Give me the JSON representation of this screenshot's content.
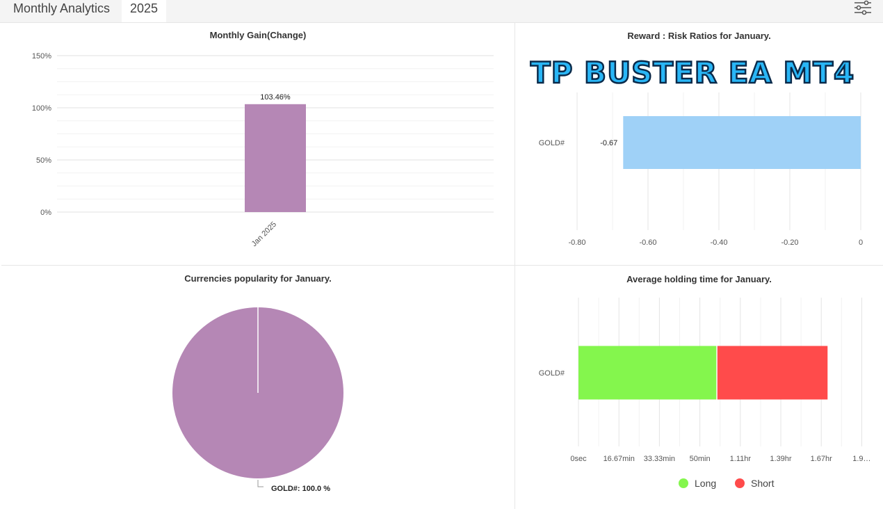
{
  "header": {
    "title": "Monthly Analytics",
    "year_tab": "2025",
    "settings_icon": "sliders-icon"
  },
  "watermark": {
    "text": "TP BUSTER EA MT4"
  },
  "colors": {
    "purple": "#b587b5",
    "light_blue": "#9fd1f7",
    "long_green": "#84f64d",
    "short_red": "#ff4b4b"
  },
  "chart_data": [
    {
      "id": "monthly_gain",
      "type": "bar",
      "title": "Monthly Gain(Change)",
      "categories": [
        "Jan 2025"
      ],
      "values": [
        103.46
      ],
      "value_labels": [
        "103.46%"
      ],
      "ylim": [
        0,
        150
      ],
      "yticks": [
        "0%",
        "50%",
        "100%",
        "150%"
      ],
      "grid": true
    },
    {
      "id": "reward_risk",
      "type": "bar",
      "orientation": "horizontal",
      "title": "Reward : Risk Ratios for January.",
      "categories": [
        "GOLD#"
      ],
      "values": [
        -0.67
      ],
      "value_labels": [
        "-0.67"
      ],
      "xlim": [
        -0.8,
        0
      ],
      "xticks": [
        "-0.80",
        "-0.60",
        "-0.40",
        "-0.20",
        "0"
      ],
      "grid": true
    },
    {
      "id": "currencies",
      "type": "pie",
      "title": "Currencies popularity for January.",
      "slices": [
        {
          "name": "GOLD#",
          "value": 100.0
        }
      ],
      "slice_label": "GOLD#: 100.0 %"
    },
    {
      "id": "holding_time",
      "type": "bar",
      "orientation": "horizontal",
      "stacked": true,
      "title": "Average holding time for January.",
      "categories": [
        "GOLD#"
      ],
      "series": [
        {
          "name": "Long",
          "values": [
            0.95
          ]
        },
        {
          "name": "Short",
          "values": [
            0.76
          ]
        }
      ],
      "value_unit": "hr",
      "xlim": [
        0,
        2.0
      ],
      "xticks": [
        "0sec",
        "16.67min",
        "33.33min",
        "50min",
        "1.11hr",
        "1.39hr",
        "1.67hr",
        "1.9…"
      ],
      "legend": "bottom-center",
      "grid": true
    }
  ]
}
